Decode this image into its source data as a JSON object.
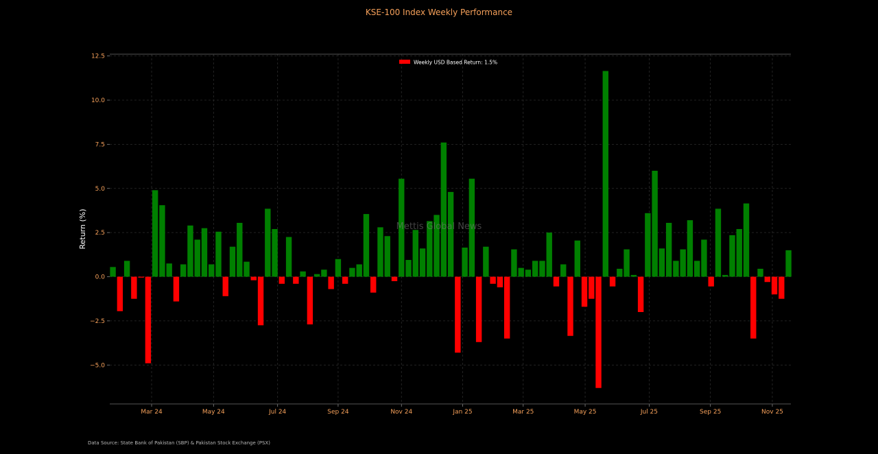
{
  "chart_data": {
    "type": "bar",
    "title": "KSE-100 Index Weekly Performance",
    "ylabel": "Return (%)",
    "xlabel": "",
    "ylim": [
      -7.2,
      12.5
    ],
    "yticks": [
      "12.5",
      "10.0",
      "7.5",
      "5.0",
      "2.5",
      "0.0",
      "−2.5",
      "−5.0"
    ],
    "ytick_values": [
      12.5,
      10.0,
      7.5,
      5.0,
      2.5,
      0.0,
      -2.5,
      -5.0
    ],
    "xtick_labels": [
      "Mar 24",
      "May 24",
      "Jul 24",
      "Sep 24",
      "Nov 24",
      "Jan 25",
      "Mar 25",
      "May 25",
      "Jul 25",
      "Sep 25",
      "Nov 25"
    ],
    "xtick_week_index": [
      5.5,
      14.3,
      23.4,
      32.0,
      41.0,
      49.7,
      58.3,
      67.1,
      76.2,
      84.9,
      93.7
    ],
    "legend": "Weekly USD Based Return: 1.5%",
    "legend_position": "top-center",
    "grid": true,
    "watermark": "Mettis Global News",
    "source": "Data Source: State Bank of Pakistan (SBP) & Pakistan Stock Exchange (PSX)",
    "colors": {
      "positive": "#008000",
      "negative": "#ff0000",
      "title": "#f5a05a",
      "ticks": "#f5a05a",
      "axis_label": "#ffffff"
    },
    "values": [
      0.55,
      -1.95,
      0.9,
      -1.25,
      -0.05,
      -4.9,
      4.9,
      4.05,
      0.75,
      -1.4,
      0.7,
      2.9,
      2.1,
      2.75,
      0.7,
      2.55,
      -1.1,
      1.7,
      3.05,
      0.85,
      -0.2,
      -2.75,
      3.85,
      2.7,
      -0.4,
      2.25,
      -0.4,
      0.3,
      -2.7,
      0.15,
      0.4,
      -0.7,
      1.0,
      -0.4,
      0.5,
      0.7,
      3.55,
      -0.9,
      2.8,
      2.3,
      -0.25,
      5.55,
      0.95,
      2.65,
      1.6,
      3.15,
      3.5,
      7.6,
      4.8,
      -4.3,
      1.65,
      5.55,
      -3.7,
      1.7,
      -0.4,
      -0.6,
      -3.5,
      1.55,
      0.5,
      0.4,
      0.9,
      0.9,
      2.5,
      -0.55,
      0.7,
      -3.35,
      2.05,
      -1.7,
      -1.25,
      -6.3,
      11.65,
      -0.55,
      0.45,
      1.55,
      0.1,
      -2.0,
      3.6,
      6.0,
      1.6,
      3.05,
      0.9,
      1.55,
      3.2,
      0.9,
      2.1,
      -0.55,
      3.85,
      0.1,
      2.35,
      2.7,
      4.15,
      -3.5,
      0.45,
      -0.3,
      -1.0,
      -1.25,
      1.5
    ]
  }
}
